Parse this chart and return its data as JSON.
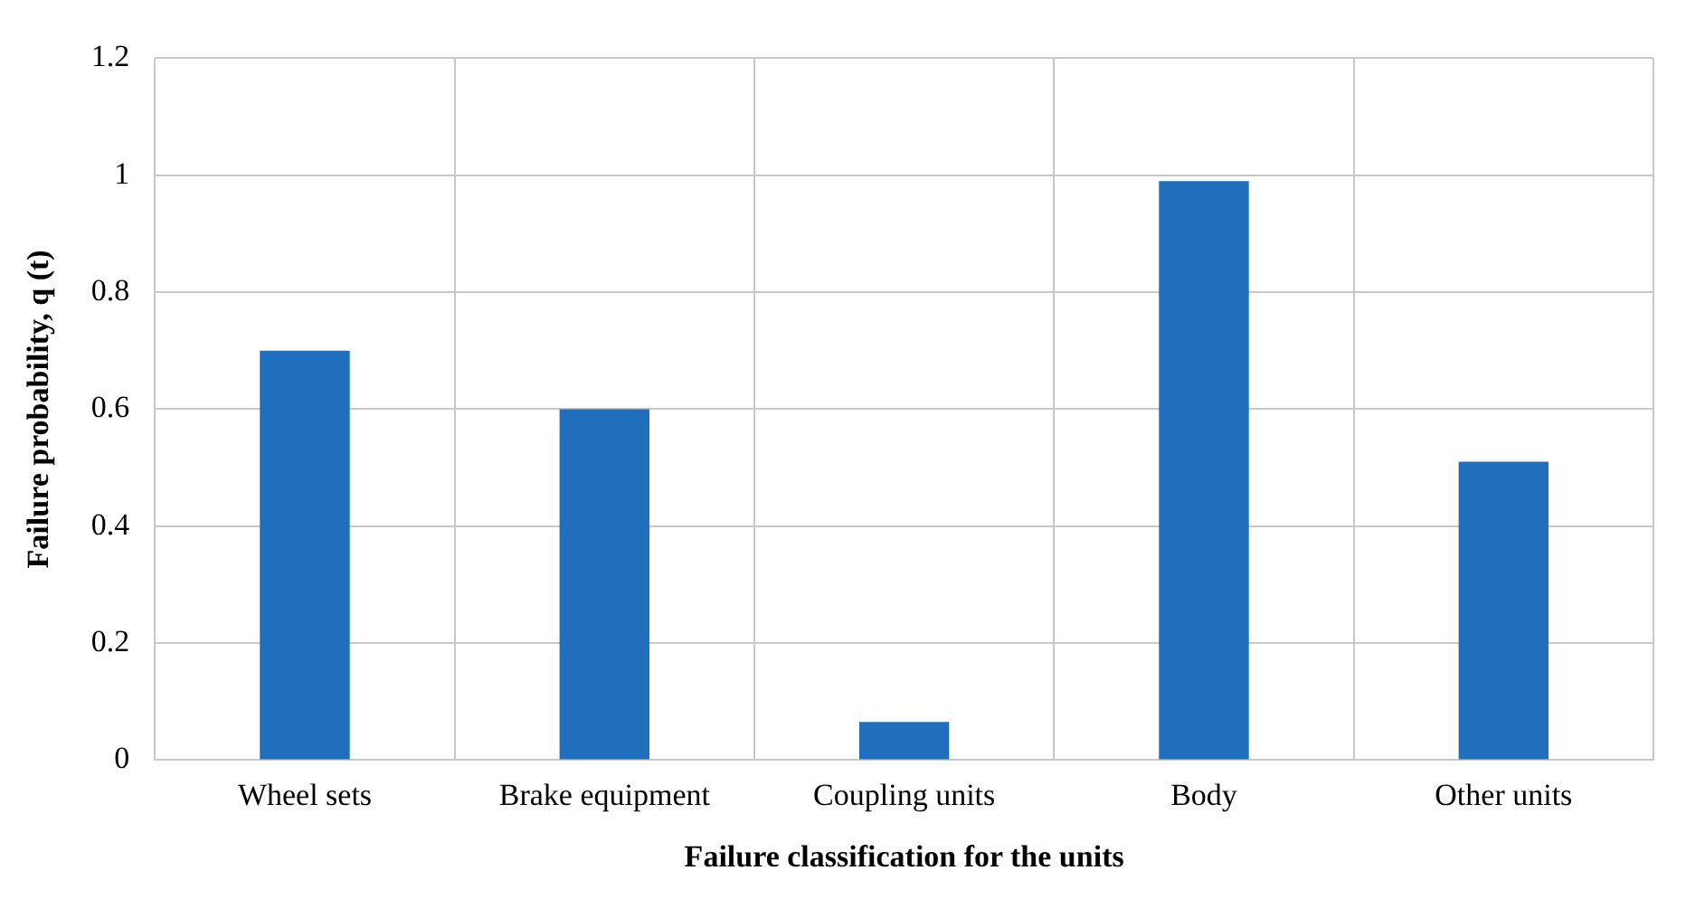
{
  "chart_data": {
    "type": "bar",
    "xlabel": "Failure classification for the units",
    "ylabel": "Failure probability, q (t)",
    "categories": [
      "Wheel sets",
      "Brake equipment",
      "Coupling units",
      "Body",
      "Other units"
    ],
    "values": [
      0.7,
      0.6,
      0.065,
      0.99,
      0.51
    ],
    "color": "#1f6fbd",
    "ylim": [
      0,
      1.2
    ],
    "yticks": [
      {
        "value": 0,
        "label": "0"
      },
      {
        "value": 0.2,
        "label": "0.2"
      },
      {
        "value": 0.4,
        "label": "0.4"
      },
      {
        "value": 0.6,
        "label": "0.6"
      },
      {
        "value": 0.8,
        "label": "0.8"
      },
      {
        "value": 1,
        "label": "1"
      },
      {
        "value": 1.2,
        "label": "1.2"
      }
    ],
    "grid": true
  }
}
